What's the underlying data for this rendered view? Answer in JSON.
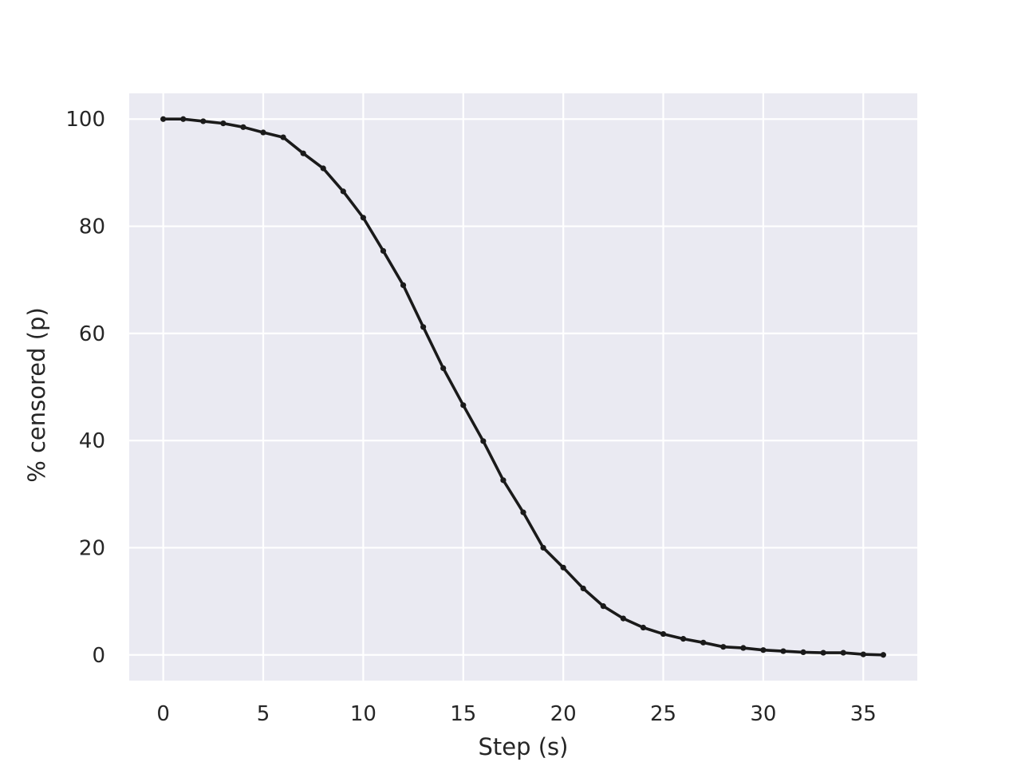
{
  "chart_data": {
    "type": "line",
    "title": "",
    "xlabel": "Step (s)",
    "ylabel": "% censored (p)",
    "xlim": [
      -1.7,
      37.7
    ],
    "ylim": [
      -4.8,
      104.8
    ],
    "xticks": [
      0,
      5,
      10,
      15,
      20,
      25,
      30,
      35
    ],
    "yticks": [
      0,
      20,
      40,
      60,
      80,
      100
    ],
    "grid": true,
    "style": {
      "background": "#eaeaf2",
      "grid_color": "#ffffff",
      "line_color": "#1a1a1a"
    },
    "series": [
      {
        "name": "",
        "x": [
          0,
          1,
          2,
          3,
          4,
          5,
          6,
          7,
          8,
          9,
          10,
          11,
          12,
          13,
          14,
          15,
          16,
          17,
          18,
          19,
          20,
          21,
          22,
          23,
          24,
          25,
          26,
          27,
          28,
          29,
          30,
          31,
          32,
          33,
          34,
          35,
          36
        ],
        "y": [
          100,
          100,
          99.6,
          99.2,
          98.5,
          97.5,
          96.6,
          93.6,
          90.8,
          86.5,
          81.6,
          75.4,
          69,
          61.2,
          53.5,
          46.6,
          39.9,
          32.6,
          26.6,
          20,
          16.3,
          12.4,
          9.1,
          6.8,
          5.1,
          3.9,
          3,
          2.3,
          1.5,
          1.3,
          0.9,
          0.7,
          0.5,
          0.4,
          0.4,
          0.1,
          0
        ]
      }
    ]
  }
}
